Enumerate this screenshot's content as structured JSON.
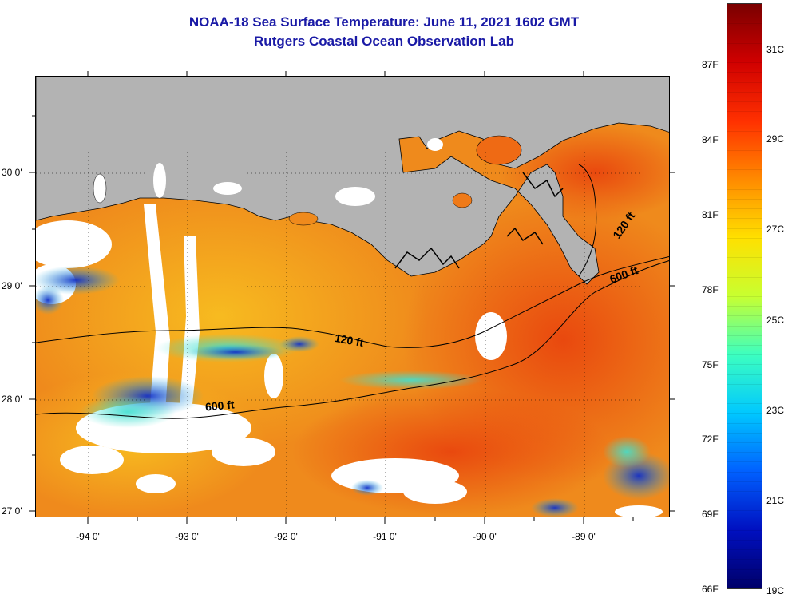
{
  "title": {
    "line1": "NOAA-18 Sea Surface Temperature:  June 11, 2021 1602 GMT",
    "line2": "Rutgers Coastal Ocean Observation Lab"
  },
  "map": {
    "lat_labels": [
      "30 0'",
      "29 0'",
      "28 0'",
      "27 0'"
    ],
    "lon_labels": [
      "-94 0'",
      "-93 0'",
      "-92 0'",
      "-91 0'",
      "-90 0'",
      "-89 0'"
    ],
    "contour_labels": [
      "120 ft",
      "600 ft",
      "120 ft",
      "600 ft"
    ],
    "colors": {
      "land": "#b3b3b3",
      "ocean_warm": "#ef7f18",
      "cloud": "#ffffff",
      "cool_water": "#1a3cd0"
    }
  },
  "colorbar": {
    "fahrenheit_labels": [
      "87F",
      "84F",
      "81F",
      "78F",
      "75F",
      "72F",
      "69F",
      "66F"
    ],
    "celsius_labels": [
      "31C",
      "29C",
      "27C",
      "25C",
      "23C",
      "21C",
      "19C"
    ],
    "colors": [
      "#7a0000",
      "#d00000",
      "#ff3000",
      "#ff8a00",
      "#ffe000",
      "#c8ff30",
      "#3cffc0",
      "#00c8ff",
      "#0060ff",
      "#0010c0",
      "#00006a"
    ]
  }
}
